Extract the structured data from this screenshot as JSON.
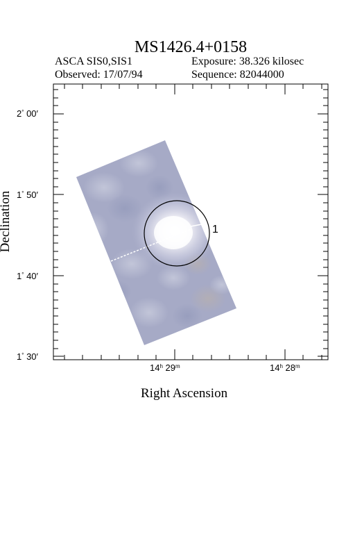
{
  "title": "MS1426.4+0158",
  "header": {
    "instrument": "ASCA SIS0,SIS1",
    "exposure": "Exposure: 38.326 kilosec",
    "observed": "Observed: 17/07/94",
    "sequence": "Sequence: 82044000"
  },
  "axes": {
    "xlabel": "Right Ascension",
    "ylabel": "Declination",
    "ytick_labels": [
      {
        "deg": "2",
        "min": "00′"
      },
      {
        "deg": "1",
        "min": "50′"
      },
      {
        "deg": "1",
        "min": "40′"
      },
      {
        "deg": "1",
        "min": "30′"
      }
    ],
    "xtick_labels": [
      {
        "h": "14",
        "m": "29"
      },
      {
        "h": "14",
        "m": "28"
      }
    ]
  },
  "source": {
    "label": "1"
  },
  "colors": {
    "image_base": "#a7abc6",
    "image_bright": "#ffffff",
    "frame": "#000000"
  }
}
